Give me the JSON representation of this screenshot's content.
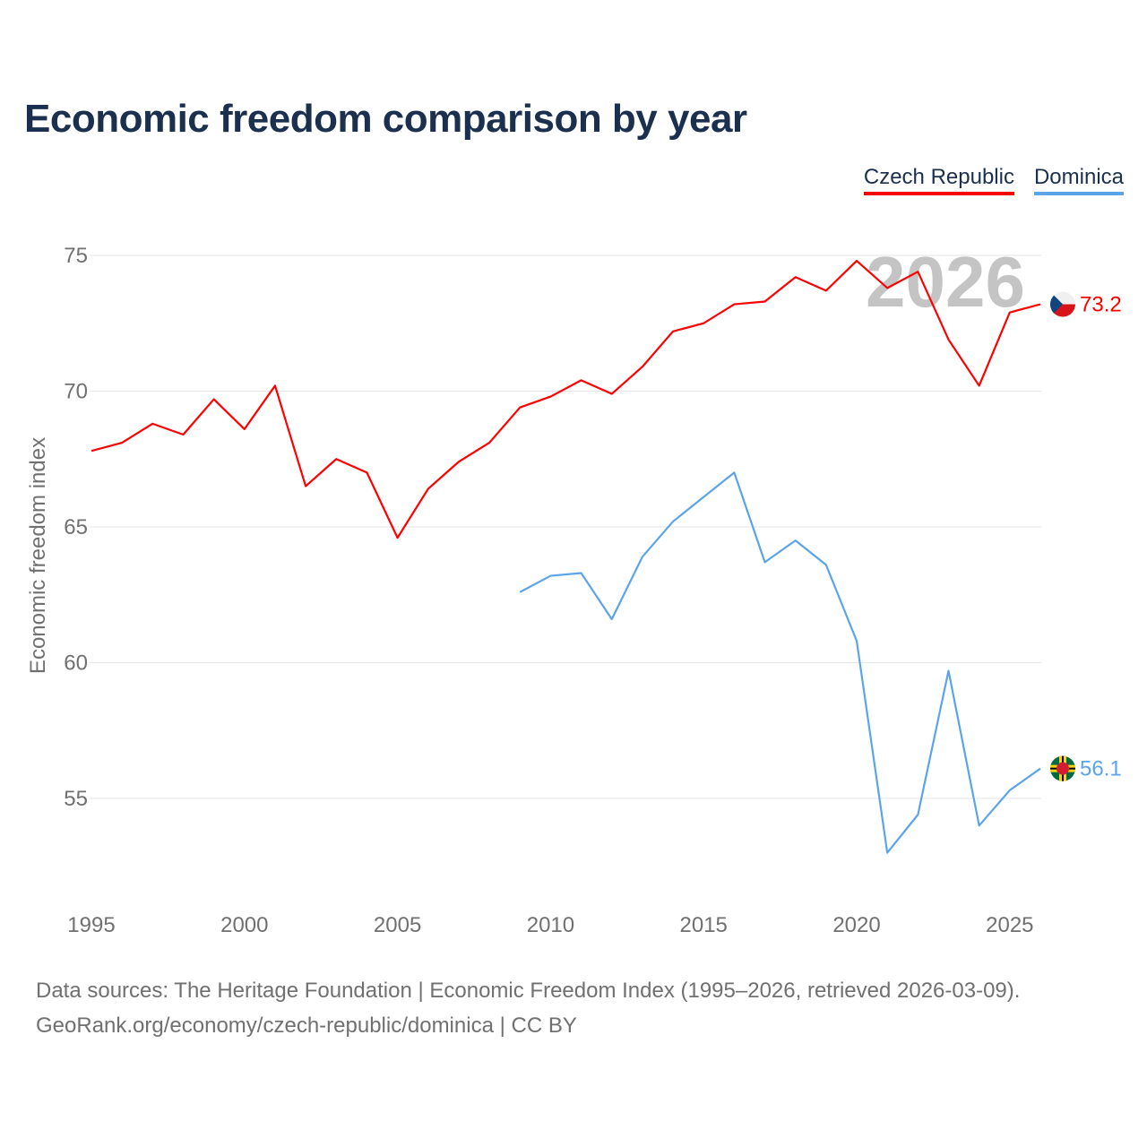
{
  "title": "Economic freedom comparison by year",
  "footer": {
    "line1": "Data sources: The Heritage Foundation | Economic Freedom Index (1995–2026, retrieved 2026-03-09).",
    "line2": "GeoRank.org/economy/czech-republic/dominica | CC BY"
  },
  "chart_data": {
    "type": "line",
    "title": "Economic freedom comparison by year",
    "xlabel": "",
    "ylabel": "Economic freedom index",
    "xlim": [
      1995,
      2026
    ],
    "ylim": [
      51,
      76
    ],
    "xticks": [
      "1995",
      "2000",
      "2005",
      "2010",
      "2015",
      "2020",
      "2025"
    ],
    "yticks": [
      "55",
      "60",
      "65",
      "70",
      "75"
    ],
    "grid": true,
    "legend_placement": "top-right",
    "watermark_year": "2026",
    "series": [
      {
        "name": "Czech Republic",
        "color": "#ff0000",
        "flag": "czech-flag-icon",
        "end_label": "73.2",
        "x": [
          1995,
          1996,
          1997,
          1998,
          1999,
          2000,
          2001,
          2002,
          2003,
          2004,
          2005,
          2006,
          2007,
          2008,
          2009,
          2010,
          2011,
          2012,
          2013,
          2014,
          2015,
          2016,
          2017,
          2018,
          2019,
          2020,
          2021,
          2022,
          2023,
          2024,
          2025,
          2026
        ],
        "values": [
          67.8,
          68.1,
          68.8,
          68.4,
          69.7,
          68.6,
          70.2,
          66.5,
          67.5,
          67.0,
          64.6,
          66.4,
          67.4,
          68.1,
          69.4,
          69.8,
          70.4,
          69.9,
          70.9,
          72.2,
          72.5,
          73.2,
          73.3,
          74.2,
          73.7,
          74.8,
          73.8,
          74.4,
          71.9,
          70.2,
          72.9,
          73.2
        ]
      },
      {
        "name": "Dominica",
        "color": "#5ba4ea",
        "flag": "dominica-flag-icon",
        "end_label": "56.1",
        "x": [
          2009,
          2010,
          2011,
          2012,
          2013,
          2014,
          2015,
          2016,
          2017,
          2018,
          2019,
          2020,
          2021,
          2022,
          2023,
          2024,
          2025,
          2026
        ],
        "values": [
          62.6,
          63.2,
          63.3,
          61.6,
          63.9,
          65.2,
          66.1,
          67.0,
          63.7,
          64.5,
          63.6,
          60.8,
          53.0,
          54.4,
          59.7,
          54.0,
          55.3,
          56.1
        ]
      }
    ]
  }
}
